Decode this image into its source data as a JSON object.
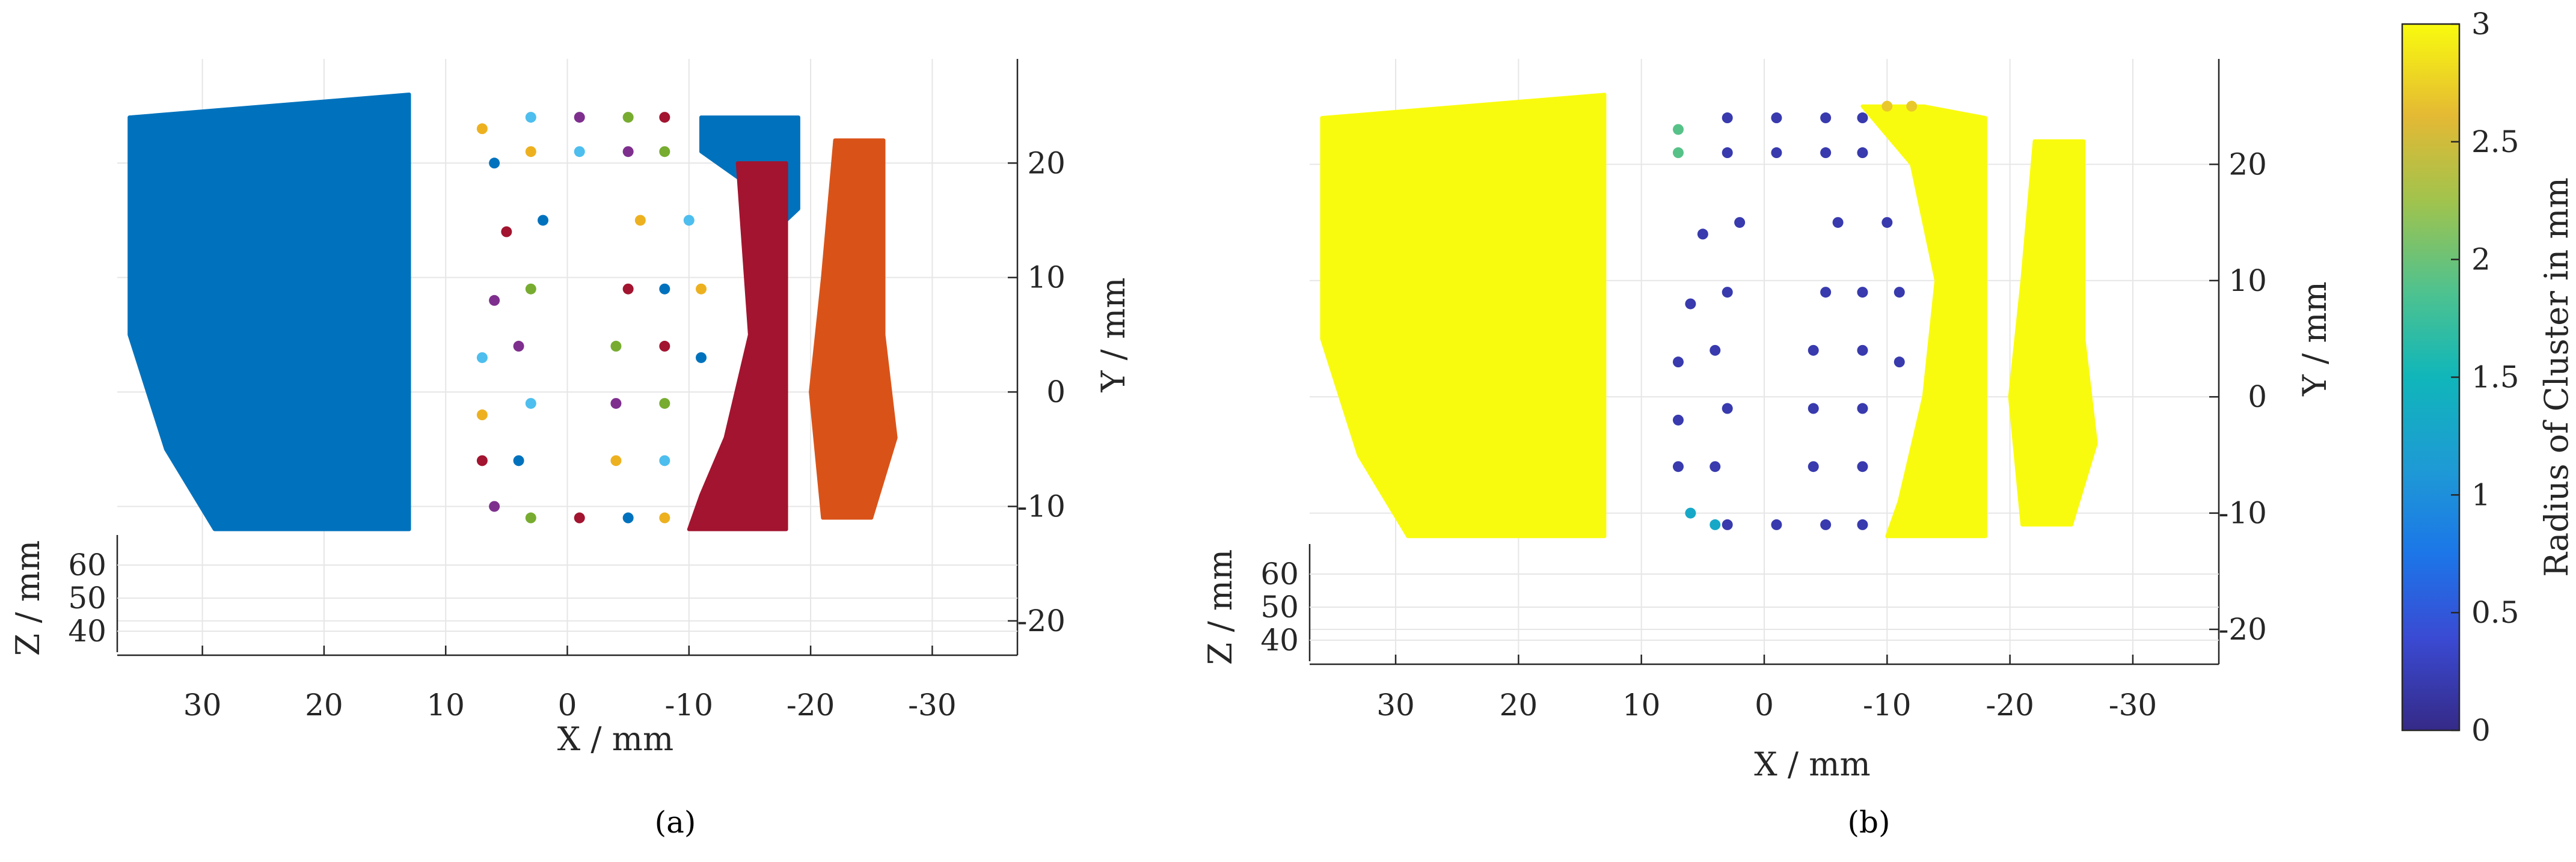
{
  "chart_data": [
    {
      "panel_label": "(a)",
      "type": "scatter",
      "description_axes": {
        "xlabel": "X / mm",
        "ylabel": "Y / mm",
        "zlabel": "Z / mm"
      },
      "x_ticks": [
        "30",
        "20",
        "10",
        "0",
        "-10",
        "-20",
        "-30"
      ],
      "x_tick_values": [
        30,
        20,
        10,
        0,
        -10,
        -20,
        -30
      ],
      "y_ticks": [
        "20",
        "10",
        "0",
        "-10",
        "-20"
      ],
      "y_tick_values": [
        20,
        10,
        0,
        -10,
        -20
      ],
      "z_ticks": [
        "60",
        "50",
        "40"
      ],
      "z_tick_values": [
        60,
        50,
        40
      ],
      "xlim": [
        37,
        -37
      ],
      "ylim": [
        -23,
        27
      ],
      "grid": true,
      "coloring": "cluster",
      "clusters": [
        {
          "shape": "polygon",
          "color": "#0072BD",
          "pts": [
            [
              36,
              24
            ],
            [
              13,
              26
            ],
            [
              13,
              -12
            ],
            [
              29,
              -12
            ],
            [
              33,
              -5
            ],
            [
              36,
              5
            ]
          ]
        },
        {
          "shape": "polygon",
          "color": "#0072BD",
          "pts": [
            [
              -11,
              24
            ],
            [
              -19,
              24
            ],
            [
              -19,
              16
            ],
            [
              -17,
              14
            ],
            [
              -15,
              18
            ],
            [
              -11,
              21
            ]
          ]
        },
        {
          "shape": "polygon",
          "color": "#A2142F",
          "pts": [
            [
              -14,
              20
            ],
            [
              -18,
              20
            ],
            [
              -18,
              -12
            ],
            [
              -10,
              -12
            ],
            [
              -11,
              -9
            ],
            [
              -13,
              -4
            ],
            [
              -15,
              5
            ]
          ]
        },
        {
          "shape": "polygon",
          "color": "#D95319",
          "pts": [
            [
              -22,
              22
            ],
            [
              -26,
              22
            ],
            [
              -26,
              5
            ],
            [
              -27,
              -4
            ],
            [
              -25,
              -11
            ],
            [
              -21,
              -11
            ],
            [
              -20,
              0
            ],
            [
              -21,
              10
            ]
          ]
        },
        {
          "shape": "dots",
          "color_cycle": [
            "#EDB120",
            "#4DBEEE",
            "#7E2F8E",
            "#77AC30",
            "#A2142F",
            "#0072BD"
          ],
          "pts": [
            [
              7,
              23
            ],
            [
              3,
              24
            ],
            [
              -1,
              24
            ],
            [
              -5,
              24
            ],
            [
              -8,
              24
            ],
            [
              6,
              20
            ],
            [
              3,
              21
            ],
            [
              -1,
              21
            ],
            [
              -5,
              21
            ],
            [
              -8,
              21
            ],
            [
              5,
              14
            ],
            [
              2,
              15
            ],
            [
              -6,
              15
            ],
            [
              -10,
              15
            ],
            [
              6,
              8
            ],
            [
              3,
              9
            ],
            [
              -5,
              9
            ],
            [
              -8,
              9
            ],
            [
              -11,
              9
            ],
            [
              7,
              3
            ],
            [
              4,
              4
            ],
            [
              -4,
              4
            ],
            [
              -8,
              4
            ],
            [
              -11,
              3
            ],
            [
              7,
              -2
            ],
            [
              3,
              -1
            ],
            [
              -4,
              -1
            ],
            [
              -8,
              -1
            ],
            [
              7,
              -6
            ],
            [
              4,
              -6
            ],
            [
              -4,
              -6
            ],
            [
              -8,
              -6
            ],
            [
              6,
              -10
            ],
            [
              3,
              -11
            ],
            [
              -1,
              -11
            ],
            [
              -5,
              -11
            ],
            [
              -8,
              -11
            ]
          ]
        }
      ]
    },
    {
      "panel_label": "(b)",
      "type": "scatter",
      "description_axes": {
        "xlabel": "X / mm",
        "ylabel": "Y / mm",
        "zlabel": "Z / mm"
      },
      "x_ticks": [
        "30",
        "20",
        "10",
        "0",
        "-10",
        "-20",
        "-30"
      ],
      "x_tick_values": [
        30,
        20,
        10,
        0,
        -10,
        -20,
        -30
      ],
      "y_ticks": [
        "20",
        "10",
        "0",
        "-10",
        "-20"
      ],
      "y_tick_values": [
        20,
        10,
        0,
        -10,
        -20
      ],
      "z_ticks": [
        "60",
        "50",
        "40"
      ],
      "z_tick_values": [
        60,
        50,
        40
      ],
      "xlim": [
        37,
        -37
      ],
      "ylim": [
        -23,
        27
      ],
      "grid": true,
      "coloring": "Radius of Cluster in mm",
      "clusters": [
        {
          "shape": "polygon",
          "radius": 3,
          "pts": [
            [
              36,
              24
            ],
            [
              13,
              26
            ],
            [
              13,
              -12
            ],
            [
              29,
              -12
            ],
            [
              33,
              -5
            ],
            [
              36,
              5
            ]
          ]
        },
        {
          "shape": "polygon",
          "radius": 3,
          "pts": [
            [
              -8,
              25
            ],
            [
              -13,
              25
            ],
            [
              -18,
              24
            ],
            [
              -18,
              -12
            ],
            [
              -10,
              -12
            ],
            [
              -11,
              -9
            ],
            [
              -13,
              0
            ],
            [
              -14,
              10
            ],
            [
              -12,
              20
            ]
          ]
        },
        {
          "shape": "polygon",
          "radius": 3,
          "pts": [
            [
              -22,
              22
            ],
            [
              -26,
              22
            ],
            [
              -26,
              5
            ],
            [
              -27,
              -4
            ],
            [
              -25,
              -11
            ],
            [
              -21,
              -11
            ],
            [
              -20,
              0
            ],
            [
              -21,
              10
            ]
          ]
        },
        {
          "shape": "dots",
          "radius": 0.2,
          "pts": [
            [
              3,
              24
            ],
            [
              -1,
              24
            ],
            [
              -5,
              24
            ],
            [
              -8,
              24
            ],
            [
              3,
              21
            ],
            [
              -1,
              21
            ],
            [
              -5,
              21
            ],
            [
              -8,
              21
            ],
            [
              5,
              14
            ],
            [
              2,
              15
            ],
            [
              -6,
              15
            ],
            [
              -10,
              15
            ],
            [
              6,
              8
            ],
            [
              3,
              9
            ],
            [
              -5,
              9
            ],
            [
              -8,
              9
            ],
            [
              -11,
              9
            ],
            [
              7,
              3
            ],
            [
              4,
              4
            ],
            [
              -4,
              4
            ],
            [
              -8,
              4
            ],
            [
              -11,
              3
            ],
            [
              7,
              -2
            ],
            [
              3,
              -1
            ],
            [
              -4,
              -1
            ],
            [
              -8,
              -1
            ],
            [
              7,
              -6
            ],
            [
              4,
              -6
            ],
            [
              -4,
              -6
            ],
            [
              -8,
              -6
            ],
            [
              3,
              -11
            ],
            [
              -1,
              -11
            ],
            [
              -5,
              -11
            ],
            [
              -8,
              -11
            ]
          ]
        },
        {
          "shape": "dots",
          "radius": 1.9,
          "pts": [
            [
              7,
              23
            ],
            [
              7,
              21
            ]
          ]
        },
        {
          "shape": "dots",
          "radius": 1.3,
          "pts": [
            [
              6,
              -10
            ],
            [
              4,
              -11
            ]
          ]
        },
        {
          "shape": "dots",
          "radius": 2.7,
          "pts": [
            [
              -10,
              25
            ],
            [
              -12,
              25
            ]
          ]
        }
      ],
      "colorbar": {
        "label": "Radius of Cluster in mm",
        "ticks": [
          "0",
          "0.5",
          "1",
          "1.5",
          "2",
          "2.5",
          "3"
        ],
        "tick_values": [
          0,
          0.5,
          1,
          1.5,
          2,
          2.5,
          3
        ],
        "range": [
          0,
          3
        ],
        "colormap": "parula"
      }
    }
  ]
}
